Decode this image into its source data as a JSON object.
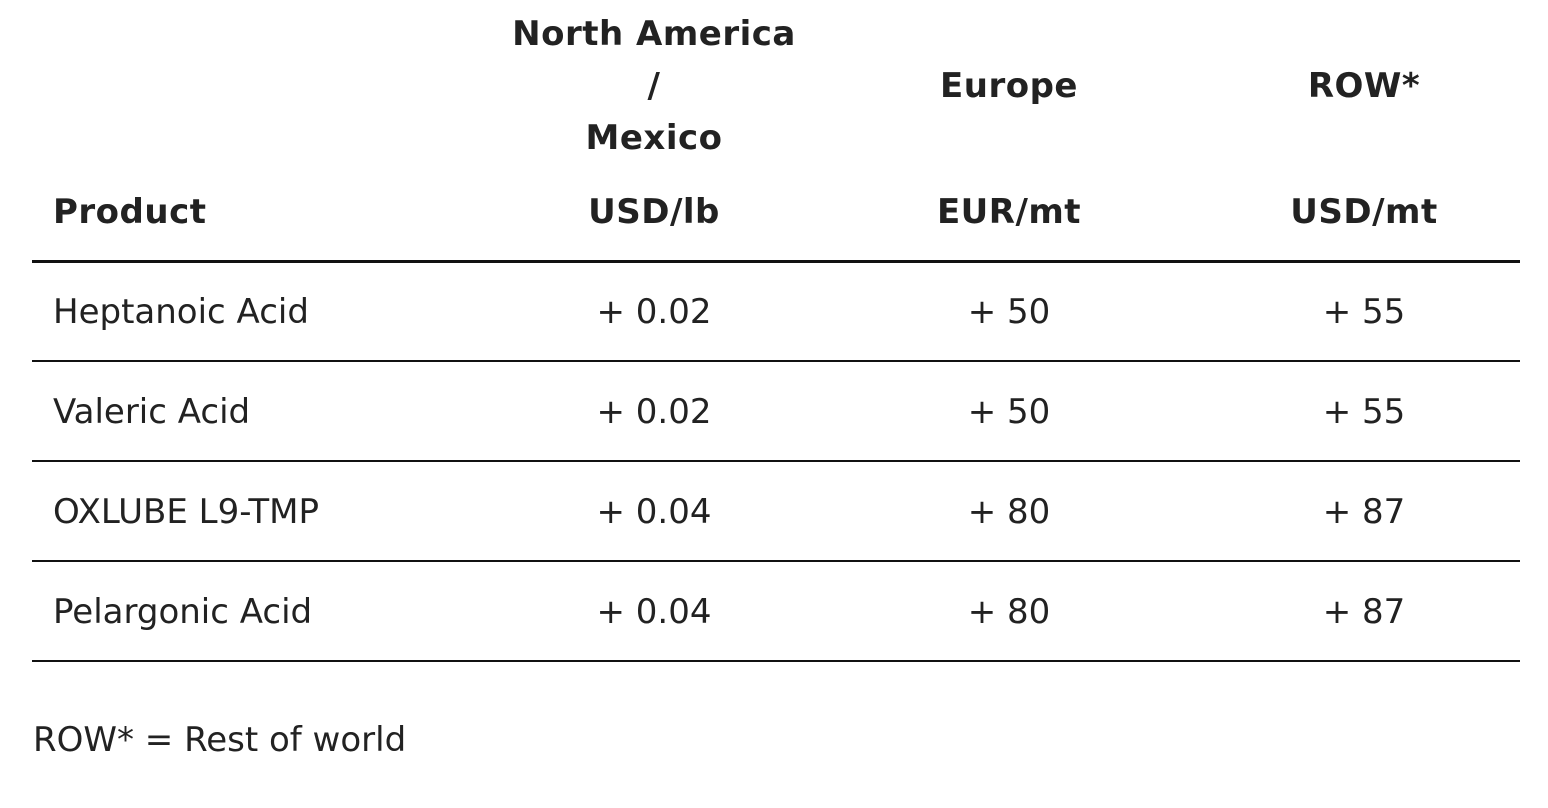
{
  "table": {
    "regions": [
      {
        "lines": [
          "North America",
          "/",
          "Mexico"
        ]
      },
      {
        "lines": [
          "Europe"
        ]
      },
      {
        "lines": [
          "ROW*"
        ]
      }
    ],
    "header": [
      "Product",
      "USD/lb",
      "EUR/mt",
      "USD/mt"
    ],
    "rows": [
      [
        "Heptanoic Acid",
        "+ 0.02",
        "+ 50",
        "+ 55"
      ],
      [
        "Valeric Acid",
        "+ 0.02",
        "+ 50",
        "+ 55"
      ],
      [
        "OXLUBE L9-TMP",
        "+ 0.04",
        "+ 80",
        "+ 87"
      ],
      [
        "Pelargonic Acid",
        "+ 0.04",
        "+ 80",
        "+ 87"
      ]
    ]
  },
  "footnote": "ROW* = Rest of world"
}
